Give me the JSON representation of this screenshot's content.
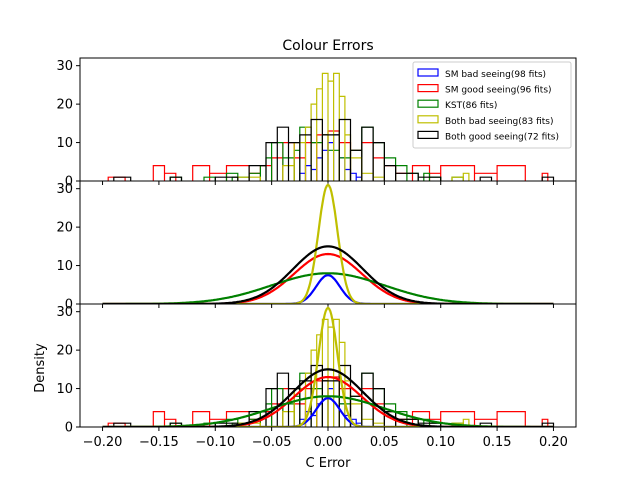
{
  "chart_data": {
    "type": "histogram+line",
    "title": "Colour Errors",
    "xlabel": "C Error",
    "ylabel": "Density",
    "xlim": [
      -0.22,
      0.22
    ],
    "xticks": [
      -0.2,
      -0.15,
      -0.1,
      -0.05,
      0.0,
      0.05,
      0.1,
      0.15,
      0.2
    ],
    "xtick_labels": [
      "−0.20",
      "−0.15",
      "−0.10",
      "−0.05",
      "0.00",
      "0.05",
      "0.10",
      "0.15",
      "0.20"
    ],
    "legend_position": "top-right",
    "series": [
      {
        "name": "SM bad seeing(98 fits)",
        "color": "#0000ff",
        "sigma": 0.0105,
        "peak": 7.5,
        "hist": [
          [
            -0.025,
            -0.02,
            2
          ],
          [
            -0.02,
            -0.015,
            4
          ],
          [
            -0.015,
            -0.01,
            3
          ],
          [
            -0.01,
            -0.005,
            6
          ],
          [
            -0.005,
            0.0,
            8
          ],
          [
            0.0,
            0.005,
            10
          ],
          [
            0.005,
            0.01,
            12
          ],
          [
            0.01,
            0.015,
            6
          ],
          [
            0.015,
            0.02,
            3
          ],
          [
            0.02,
            0.025,
            2
          ],
          [
            0.025,
            0.03,
            1
          ]
        ]
      },
      {
        "name": "SM good seeing(96 fits)",
        "color": "#ff0000",
        "sigma": 0.03,
        "peak": 13,
        "hist": [
          [
            -0.195,
            -0.18,
            1
          ],
          [
            -0.155,
            -0.145,
            4
          ],
          [
            -0.145,
            -0.135,
            2
          ],
          [
            -0.12,
            -0.105,
            4
          ],
          [
            -0.105,
            -0.09,
            2
          ],
          [
            -0.09,
            -0.07,
            4
          ],
          [
            -0.07,
            -0.06,
            2
          ],
          [
            -0.06,
            -0.05,
            4
          ],
          [
            -0.05,
            -0.04,
            6
          ],
          [
            -0.04,
            -0.03,
            10
          ],
          [
            -0.03,
            -0.02,
            6
          ],
          [
            -0.02,
            -0.01,
            10
          ],
          [
            -0.01,
            0.0,
            12
          ],
          [
            0.0,
            0.01,
            13
          ],
          [
            0.01,
            0.02,
            10
          ],
          [
            0.02,
            0.03,
            8
          ],
          [
            0.03,
            0.04,
            10
          ],
          [
            0.04,
            0.05,
            6
          ],
          [
            0.05,
            0.06,
            4
          ],
          [
            0.06,
            0.075,
            2
          ],
          [
            0.075,
            0.09,
            4
          ],
          [
            0.09,
            0.1,
            2
          ],
          [
            0.1,
            0.13,
            4
          ],
          [
            0.13,
            0.15,
            2
          ],
          [
            0.15,
            0.175,
            4
          ],
          [
            0.19,
            0.195,
            2
          ]
        ]
      },
      {
        "name": "KST(86 fits)",
        "color": "#008000",
        "sigma": 0.05,
        "peak": 8,
        "hist": [
          [
            -0.14,
            -0.13,
            1
          ],
          [
            -0.11,
            -0.1,
            1
          ],
          [
            -0.09,
            -0.08,
            2
          ],
          [
            -0.085,
            -0.07,
            1
          ],
          [
            -0.07,
            -0.06,
            2
          ],
          [
            -0.06,
            -0.055,
            4
          ],
          [
            -0.055,
            -0.05,
            6
          ],
          [
            -0.05,
            -0.04,
            10
          ],
          [
            -0.04,
            -0.03,
            6
          ],
          [
            -0.03,
            -0.025,
            8
          ],
          [
            -0.025,
            -0.015,
            14
          ],
          [
            -0.015,
            -0.005,
            10
          ],
          [
            -0.005,
            0.0,
            12
          ],
          [
            0.0,
            0.01,
            8
          ],
          [
            0.01,
            0.02,
            6
          ],
          [
            0.02,
            0.03,
            8
          ],
          [
            0.03,
            0.04,
            14
          ],
          [
            0.04,
            0.05,
            10
          ],
          [
            0.05,
            0.06,
            6
          ],
          [
            0.06,
            0.07,
            4
          ],
          [
            0.07,
            0.08,
            2
          ],
          [
            0.085,
            0.09,
            2
          ],
          [
            0.09,
            0.1,
            1
          ],
          [
            0.11,
            0.12,
            1
          ]
        ]
      },
      {
        "name": "Both bad seeing(83 fits)",
        "color": "#bfbf00",
        "sigma": 0.0085,
        "peak": 31,
        "hist": [
          [
            -0.08,
            -0.06,
            1
          ],
          [
            -0.04,
            -0.03,
            4
          ],
          [
            -0.03,
            -0.02,
            10
          ],
          [
            -0.02,
            -0.015,
            14
          ],
          [
            -0.015,
            -0.01,
            20
          ],
          [
            -0.01,
            -0.005,
            24
          ],
          [
            -0.005,
            0.0,
            28
          ],
          [
            0.0,
            0.005,
            26
          ],
          [
            0.005,
            0.01,
            28
          ],
          [
            0.01,
            0.015,
            22
          ],
          [
            0.015,
            0.02,
            12
          ],
          [
            0.02,
            0.03,
            6
          ],
          [
            0.03,
            0.04,
            2
          ],
          [
            0.04,
            0.05,
            1
          ],
          [
            0.11,
            0.12,
            1
          ],
          [
            0.12,
            0.125,
            2
          ]
        ]
      },
      {
        "name": "Both good seeing(72 fits)",
        "color": "#000000",
        "sigma": 0.031,
        "peak": 15,
        "hist": [
          [
            -0.19,
            -0.175,
            1
          ],
          [
            -0.14,
            -0.13,
            1
          ],
          [
            -0.1,
            -0.08,
            1
          ],
          [
            -0.07,
            -0.055,
            4
          ],
          [
            -0.055,
            -0.045,
            10
          ],
          [
            -0.045,
            -0.035,
            14
          ],
          [
            -0.035,
            -0.025,
            10
          ],
          [
            -0.025,
            -0.015,
            12
          ],
          [
            -0.015,
            -0.005,
            16
          ],
          [
            -0.005,
            0.01,
            12
          ],
          [
            0.01,
            0.02,
            16
          ],
          [
            0.02,
            0.03,
            8
          ],
          [
            0.03,
            0.04,
            14
          ],
          [
            0.04,
            0.05,
            10
          ],
          [
            0.05,
            0.06,
            4
          ],
          [
            0.06,
            0.08,
            2
          ],
          [
            0.08,
            0.1,
            1
          ],
          [
            0.135,
            0.145,
            1
          ],
          [
            0.19,
            0.2,
            1
          ]
        ]
      }
    ],
    "panels": [
      {
        "id": "hist",
        "ylim": [
          0,
          32
        ],
        "yticks": [
          0,
          10,
          20,
          30
        ],
        "show": [
          "hist"
        ],
        "legend": true
      },
      {
        "id": "fit",
        "ylim": [
          0,
          32
        ],
        "yticks": [
          0,
          10,
          20,
          30
        ],
        "show": [
          "fit"
        ]
      },
      {
        "id": "combined",
        "ylim": [
          0,
          32
        ],
        "yticks": [
          0,
          10,
          20,
          30
        ],
        "show": [
          "hist",
          "fit"
        ],
        "xticks": true
      }
    ]
  }
}
